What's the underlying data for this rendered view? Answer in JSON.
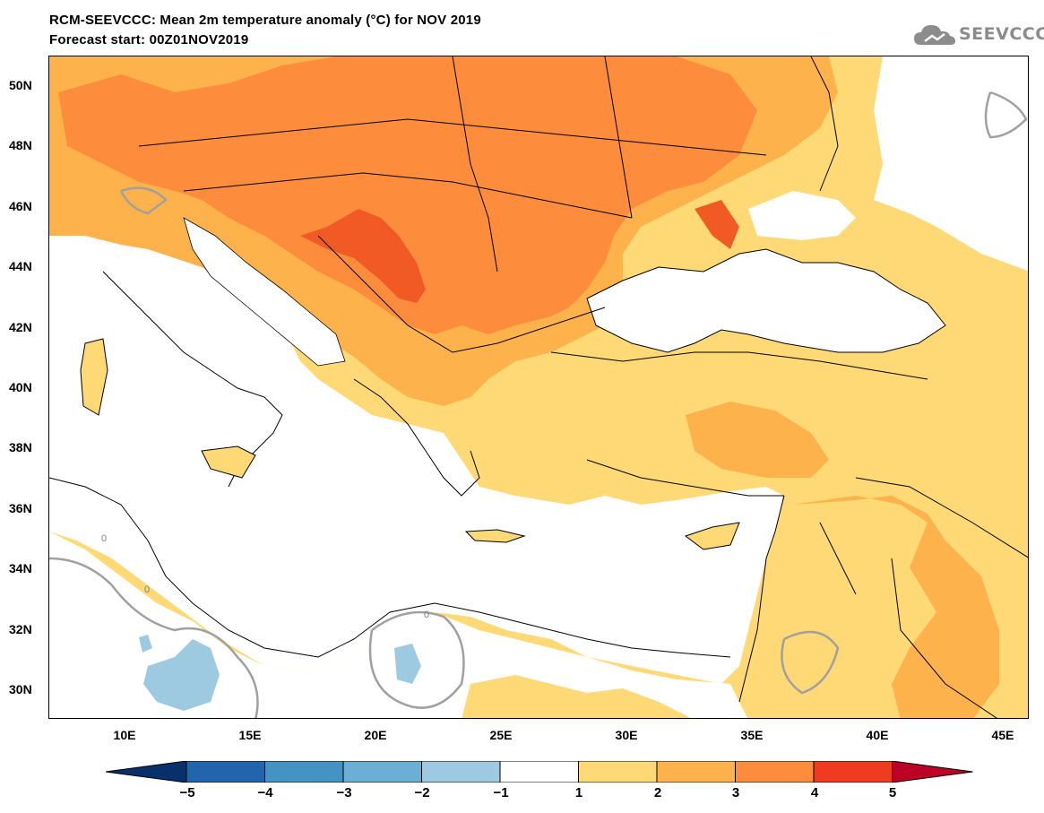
{
  "title": {
    "line1": "RCM-SEEVCCC: Mean 2m temperature anomaly (°C) for NOV 2019",
    "line2": "Forecast start: 00Z01NOV2019"
  },
  "logo": {
    "text": "SEEVCCC",
    "icon": "cloud-icon"
  },
  "map": {
    "lat_labels": [
      "50N",
      "48N",
      "46N",
      "44N",
      "42N",
      "40N",
      "38N",
      "36N",
      "34N",
      "32N",
      "30N"
    ],
    "lon_labels": [
      "10E",
      "15E",
      "20E",
      "25E",
      "30E",
      "35E",
      "40E",
      "45E"
    ],
    "contour_labels": [
      "0",
      "0",
      "0"
    ]
  },
  "colorbar": {
    "labels": [
      "−5",
      "−4",
      "−3",
      "−2",
      "−1",
      "1",
      "2",
      "3",
      "4",
      "5"
    ],
    "colors": [
      "#08306b",
      "#2166ac",
      "#4393c3",
      "#6baed6",
      "#9ecae1",
      "#ffffff",
      "#fed976",
      "#feb24c",
      "#fd8d3c",
      "#f03b20",
      "#bd0026"
    ]
  },
  "colors": {
    "anom_1_2": "#fed976",
    "anom_2_3": "#fdb24c",
    "anom_3_4": "#fd8d3c",
    "anom_4_5": "#f15a24",
    "anom_neg_2_1": "#9ecae1",
    "contour_zero": "#a0a0a0"
  }
}
